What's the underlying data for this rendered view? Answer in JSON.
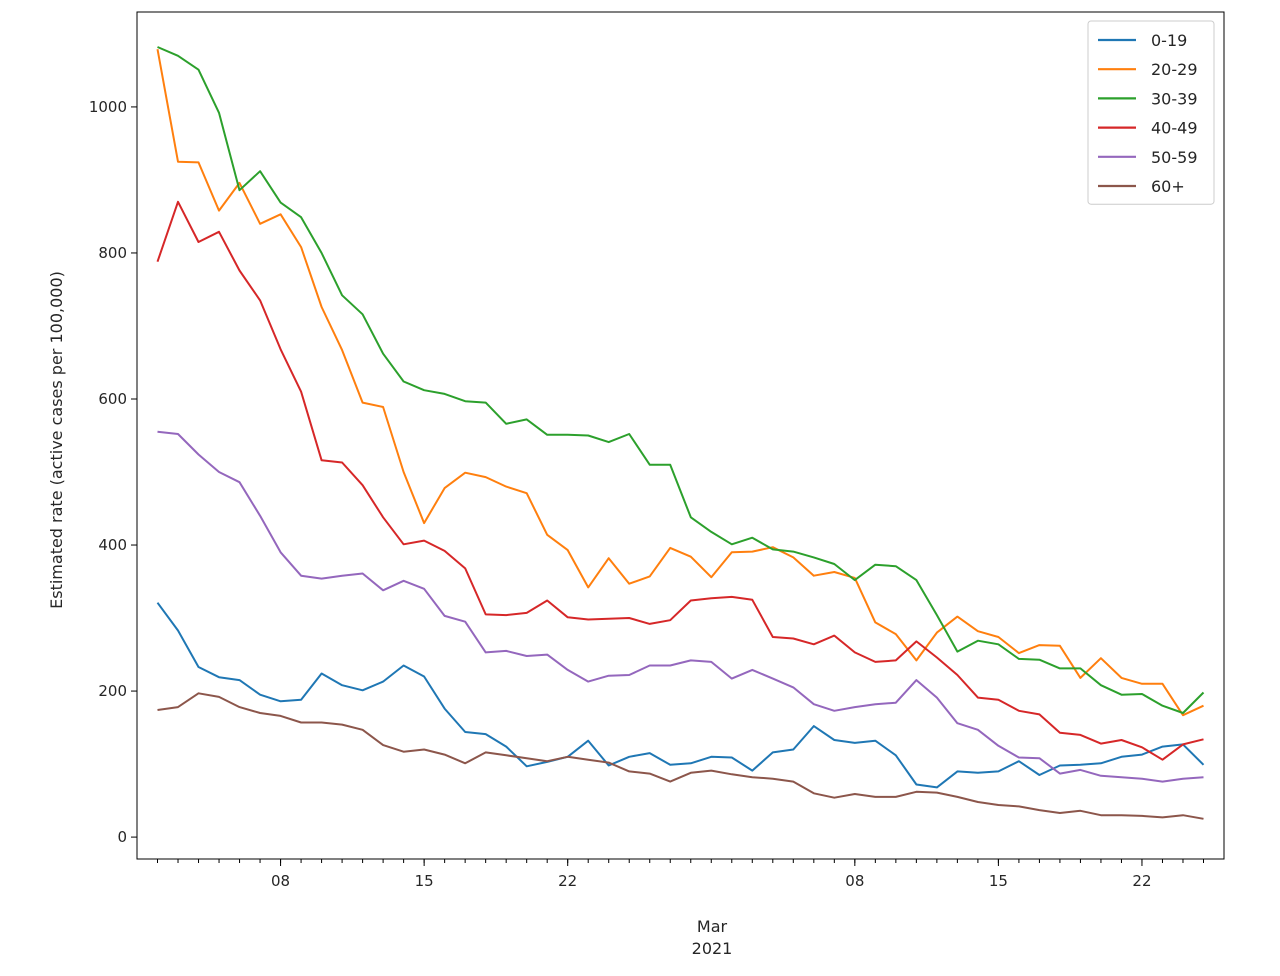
{
  "chart_data": {
    "type": "line",
    "title": "",
    "ylabel": "Estimated rate (active cases per 100,000)",
    "xlabel": "",
    "xlabel_lines": [
      "Mar",
      "2021"
    ],
    "xlim": [
      "2021-02-01",
      "2021-03-26"
    ],
    "ylim": [
      -30,
      1130
    ],
    "yticks": [
      0,
      200,
      400,
      600,
      800,
      1000
    ],
    "xticks": [
      {
        "date": "2021-02-08",
        "label": "08"
      },
      {
        "date": "2021-02-15",
        "label": "15"
      },
      {
        "date": "2021-02-22",
        "label": "22"
      },
      {
        "date": "2021-03-08",
        "label": "08"
      },
      {
        "date": "2021-03-15",
        "label": "15"
      },
      {
        "date": "2021-03-22",
        "label": "22"
      }
    ],
    "grid": false,
    "legend_position": "top-right",
    "start_date": "2021-02-02",
    "series": [
      {
        "name": "0-19",
        "color": "#1f77b4",
        "values": [
          321,
          283,
          233,
          219,
          215,
          195,
          186,
          188,
          224,
          208,
          201,
          213,
          235,
          220,
          176,
          144,
          141,
          124,
          97,
          103,
          110,
          132,
          98,
          110,
          115,
          99,
          101,
          110,
          109,
          91,
          116,
          120,
          152,
          133,
          129,
          132,
          112,
          72,
          68,
          90,
          88,
          90,
          104,
          85,
          98,
          99,
          101,
          110,
          113,
          124,
          127,
          99
        ]
      },
      {
        "name": "20-29",
        "color": "#ff7f0e",
        "values": [
          1079,
          925,
          924,
          858,
          896,
          840,
          853,
          808,
          726,
          667,
          595,
          589,
          500,
          430,
          478,
          499,
          493,
          480,
          471,
          414,
          393,
          342,
          382,
          347,
          357,
          396,
          384,
          356,
          390,
          391,
          397,
          383,
          358,
          363,
          355,
          294,
          278,
          242,
          280,
          302,
          282,
          274,
          252,
          263,
          262,
          218,
          245,
          218,
          210,
          210,
          167,
          180
        ]
      },
      {
        "name": "30-39",
        "color": "#2ca02c",
        "values": [
          1082,
          1070,
          1051,
          992,
          886,
          912,
          869,
          849,
          800,
          742,
          716,
          662,
          624,
          612,
          607,
          597,
          595,
          566,
          572,
          551,
          551,
          550,
          541,
          552,
          510,
          510,
          438,
          418,
          401,
          410,
          394,
          391,
          383,
          374,
          352,
          373,
          371,
          352,
          304,
          254,
          269,
          264,
          244,
          243,
          231,
          231,
          208,
          195,
          196,
          180,
          170,
          198
        ]
      },
      {
        "name": "40-49",
        "color": "#d62728",
        "values": [
          788,
          870,
          815,
          829,
          776,
          735,
          668,
          610,
          516,
          513,
          482,
          438,
          401,
          406,
          392,
          368,
          305,
          304,
          307,
          324,
          301,
          298,
          299,
          300,
          292,
          297,
          324,
          327,
          329,
          325,
          274,
          272,
          264,
          276,
          253,
          240,
          242,
          268,
          246,
          222,
          191,
          188,
          173,
          168,
          143,
          140,
          128,
          133,
          123,
          106,
          127,
          134
        ]
      },
      {
        "name": "50-59",
        "color": "#9467bd",
        "values": [
          555,
          552,
          524,
          500,
          486,
          440,
          390,
          358,
          354,
          358,
          361,
          338,
          351,
          340,
          303,
          295,
          253,
          255,
          248,
          250,
          229,
          213,
          221,
          222,
          235,
          235,
          242,
          240,
          217,
          229,
          217,
          205,
          182,
          173,
          178,
          182,
          184,
          215,
          191,
          156,
          147,
          125,
          109,
          108,
          87,
          92,
          84,
          82,
          80,
          76,
          80,
          82
        ]
      },
      {
        "name": "60+",
        "color": "#8c564b",
        "values": [
          174,
          178,
          197,
          192,
          178,
          170,
          166,
          157,
          157,
          154,
          147,
          126,
          117,
          120,
          113,
          101,
          116,
          112,
          108,
          104,
          110,
          106,
          102,
          90,
          87,
          76,
          88,
          91,
          86,
          82,
          80,
          76,
          60,
          54,
          59,
          55,
          55,
          62,
          61,
          55,
          48,
          44,
          42,
          37,
          33,
          36,
          30,
          30,
          29,
          27,
          30,
          25
        ]
      }
    ]
  }
}
